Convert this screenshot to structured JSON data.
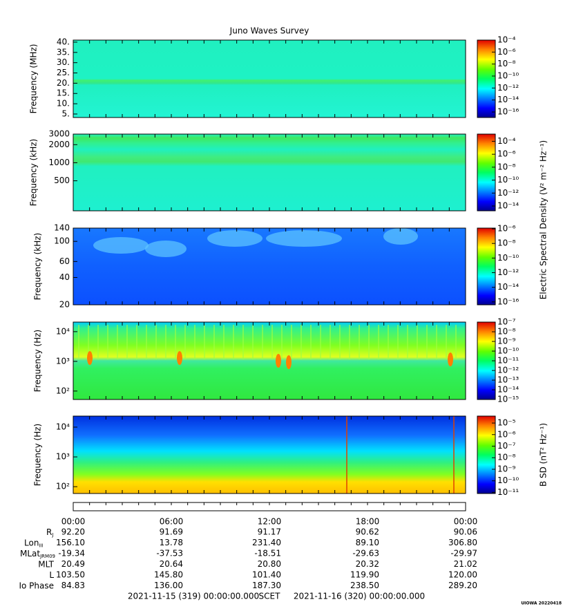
{
  "chart_data": [
    {
      "type": "spectrogram",
      "title": "Juno Waves Survey",
      "ylabel": "Frequency (MHz)",
      "log": false,
      "ylim": [
        3.3,
        41
      ],
      "yticks": [
        {
          "value": 5,
          "label": "5."
        },
        {
          "value": 10,
          "label": "10."
        },
        {
          "value": 15,
          "label": "15."
        },
        {
          "value": 20,
          "label": "20."
        },
        {
          "value": 25,
          "label": "25."
        },
        {
          "value": 30,
          "label": "30."
        },
        {
          "value": 35,
          "label": "35."
        },
        {
          "value": 40,
          "label": "40."
        }
      ],
      "colorbar": {
        "clim": [
          1.2e-17,
          0.0001
        ],
        "ticks": [
          {
            "value": 1e-16,
            "label": "10⁻¹⁶"
          },
          {
            "value": 1e-14,
            "label": "10⁻¹⁴"
          },
          {
            "value": 1e-12,
            "label": "10⁻¹²"
          },
          {
            "value": 1e-10,
            "label": "10⁻¹⁰"
          },
          {
            "value": 1e-08,
            "label": "10⁻⁸"
          },
          {
            "value": 1e-06,
            "label": "10⁻⁶"
          },
          {
            "value": 0.0001,
            "label": "10⁻⁴"
          }
        ]
      }
    },
    {
      "type": "spectrogram",
      "ylabel": "Frequency (kHz)",
      "log": true,
      "ylim": [
        158,
        3000
      ],
      "yticks": [
        500,
        1000,
        2000,
        3000
      ],
      "colorbar": {
        "clim": [
          1.8e-15,
          0.0013
        ],
        "ticks": [
          {
            "value": 1e-14,
            "label": "10⁻¹⁴"
          },
          {
            "value": 1e-12,
            "label": "10⁻¹²"
          },
          {
            "value": 1e-10,
            "label": "10⁻¹⁰"
          },
          {
            "value": 1e-08,
            "label": "10⁻⁸"
          },
          {
            "value": 1e-06,
            "label": "10⁻⁶"
          },
          {
            "value": 0.0001,
            "label": "10⁻⁴"
          }
        ]
      },
      "colorbar_label": "Electric Spectral Density (V² m⁻² Hz⁻¹)"
    },
    {
      "type": "spectrogram",
      "ylabel": "Frequency (kHz)",
      "log": true,
      "ylim": [
        20,
        140
      ],
      "yticks": [
        20,
        40,
        60,
        100,
        140
      ],
      "colorbar": {
        "clim": [
          4e-17,
          1.26e-06
        ],
        "ticks": [
          {
            "value": 1e-16,
            "label": "10⁻¹⁶"
          },
          {
            "value": 1e-14,
            "label": "10⁻¹⁴"
          },
          {
            "value": 1e-12,
            "label": "10⁻¹²"
          },
          {
            "value": 1e-10,
            "label": "10⁻¹⁰"
          },
          {
            "value": 1e-08,
            "label": "10⁻⁸"
          },
          {
            "value": 1e-06,
            "label": "10⁻⁶"
          }
        ]
      }
    },
    {
      "type": "spectrogram",
      "ylabel": "Frequency (Hz)",
      "log": true,
      "ylim": [
        52,
        21000
      ],
      "yticks": [
        {
          "value": 100,
          "label": "10²"
        },
        {
          "value": 1000,
          "label": "10³"
        },
        {
          "value": 10000,
          "label": "10⁴"
        }
      ],
      "colorbar": {
        "clim": [
          1e-15,
          1e-07
        ],
        "ticks": [
          {
            "value": 1e-15,
            "label": "10⁻¹⁵"
          },
          {
            "value": 1e-14,
            "label": "10⁻¹⁴"
          },
          {
            "value": 1e-13,
            "label": "10⁻¹³"
          },
          {
            "value": 1e-12,
            "label": "10⁻¹²"
          },
          {
            "value": 1e-11,
            "label": "10⁻¹¹"
          },
          {
            "value": 1e-10,
            "label": "10⁻¹⁰"
          },
          {
            "value": 1e-09,
            "label": "10⁻⁹"
          },
          {
            "value": 1e-08,
            "label": "10⁻⁸"
          },
          {
            "value": 1e-07,
            "label": "10⁻⁷"
          }
        ]
      }
    },
    {
      "type": "spectrogram",
      "ylabel": "Frequency (Hz)",
      "log": true,
      "ylim": [
        59,
        23500
      ],
      "yticks": [
        {
          "value": 100,
          "label": "10²"
        },
        {
          "value": 1000,
          "label": "10³"
        },
        {
          "value": 10000,
          "label": "10⁴"
        }
      ],
      "colorbar": {
        "clim": [
          8e-12,
          4e-05
        ],
        "ticks": [
          {
            "value": 1e-11,
            "label": "10⁻¹¹"
          },
          {
            "value": 1e-10,
            "label": "10⁻¹⁰"
          },
          {
            "value": 1e-09,
            "label": "10⁻⁹"
          },
          {
            "value": 1e-08,
            "label": "10⁻⁸"
          },
          {
            "value": 1e-07,
            "label": "10⁻⁷"
          },
          {
            "value": 1e-06,
            "label": "10⁻⁶"
          },
          {
            "value": 1e-05,
            "label": "10⁻⁵"
          }
        ]
      },
      "colorbar_label": "B SD (nT² Hz⁻¹)"
    }
  ],
  "ephemeris": {
    "times": [
      "00:00",
      "06:00",
      "12:00",
      "18:00",
      "00:00"
    ],
    "rows": [
      {
        "label": "R",
        "subscript": "J",
        "values": [
          "92.20",
          "91.69",
          "91.17",
          "90.62",
          "90.06"
        ]
      },
      {
        "label": "Lon",
        "subscript": "III",
        "values": [
          "156.10",
          "13.78",
          "231.40",
          "89.10",
          "306.80"
        ]
      },
      {
        "label": "MLat",
        "subscript": "JRM09",
        "values": [
          "-19.34",
          "-37.53",
          "-18.51",
          "-29.63",
          "-29.97"
        ]
      },
      {
        "label": "MLT",
        "values": [
          "20.49",
          "20.64",
          "20.80",
          "20.32",
          "21.02"
        ]
      },
      {
        "label": "L",
        "values": [
          "103.50",
          "145.80",
          "101.40",
          "119.90",
          "120.00"
        ]
      },
      {
        "label": "Io Phase",
        "values": [
          "84.83",
          "136.00",
          "187.30",
          "238.50",
          "289.20"
        ]
      }
    ]
  },
  "footer": {
    "start": "2021-11-15 (319) 00:00:00.000",
    "frame": "SCET",
    "end": "2021-11-16 (320) 00:00:00.000",
    "stamp": "UIOWA 20220418"
  }
}
